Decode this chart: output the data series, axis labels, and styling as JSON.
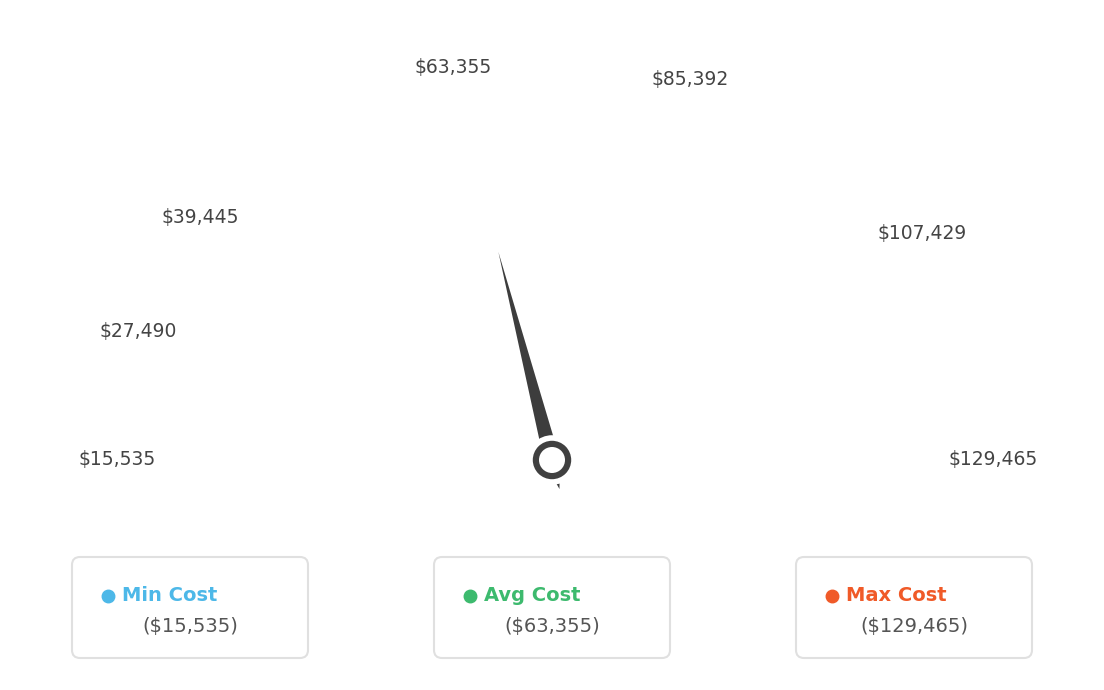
{
  "min_val": 15535,
  "avg_val": 63355,
  "max_val": 129465,
  "tick_labels": [
    "$15,535",
    "$27,490",
    "$39,445",
    "$63,355",
    "$85,392",
    "$107,429",
    "$129,465"
  ],
  "tick_values": [
    15535,
    27490,
    39445,
    63355,
    85392,
    107429,
    129465
  ],
  "legend_items": [
    {
      "label": "Min Cost",
      "value": "($15,535)",
      "color": "#4db8e8"
    },
    {
      "label": "Avg Cost",
      "value": "($63,355)",
      "color": "#3dba6e"
    },
    {
      "label": "Max Cost",
      "value": "($129,465)",
      "color": "#f05a28"
    }
  ],
  "color_stops": [
    [
      0.0,
      [
        0.36,
        0.72,
        0.92
      ]
    ],
    [
      0.18,
      [
        0.29,
        0.78,
        0.78
      ]
    ],
    [
      0.38,
      [
        0.27,
        0.75,
        0.55
      ]
    ],
    [
      0.5,
      [
        0.24,
        0.73,
        0.43
      ]
    ],
    [
      0.62,
      [
        0.42,
        0.68,
        0.38
      ]
    ],
    [
      0.7,
      [
        0.55,
        0.58,
        0.28
      ]
    ],
    [
      0.78,
      [
        0.68,
        0.48,
        0.22
      ]
    ],
    [
      0.86,
      [
        0.82,
        0.38,
        0.18
      ]
    ],
    [
      1.0,
      [
        0.94,
        0.32,
        0.12
      ]
    ]
  ],
  "background_color": "#ffffff",
  "outer_ring_color": "#d8d8d8",
  "inner_ring_color": "#d0d0d0",
  "needle_color": "#3d3d3d",
  "hub_color": "#404040"
}
